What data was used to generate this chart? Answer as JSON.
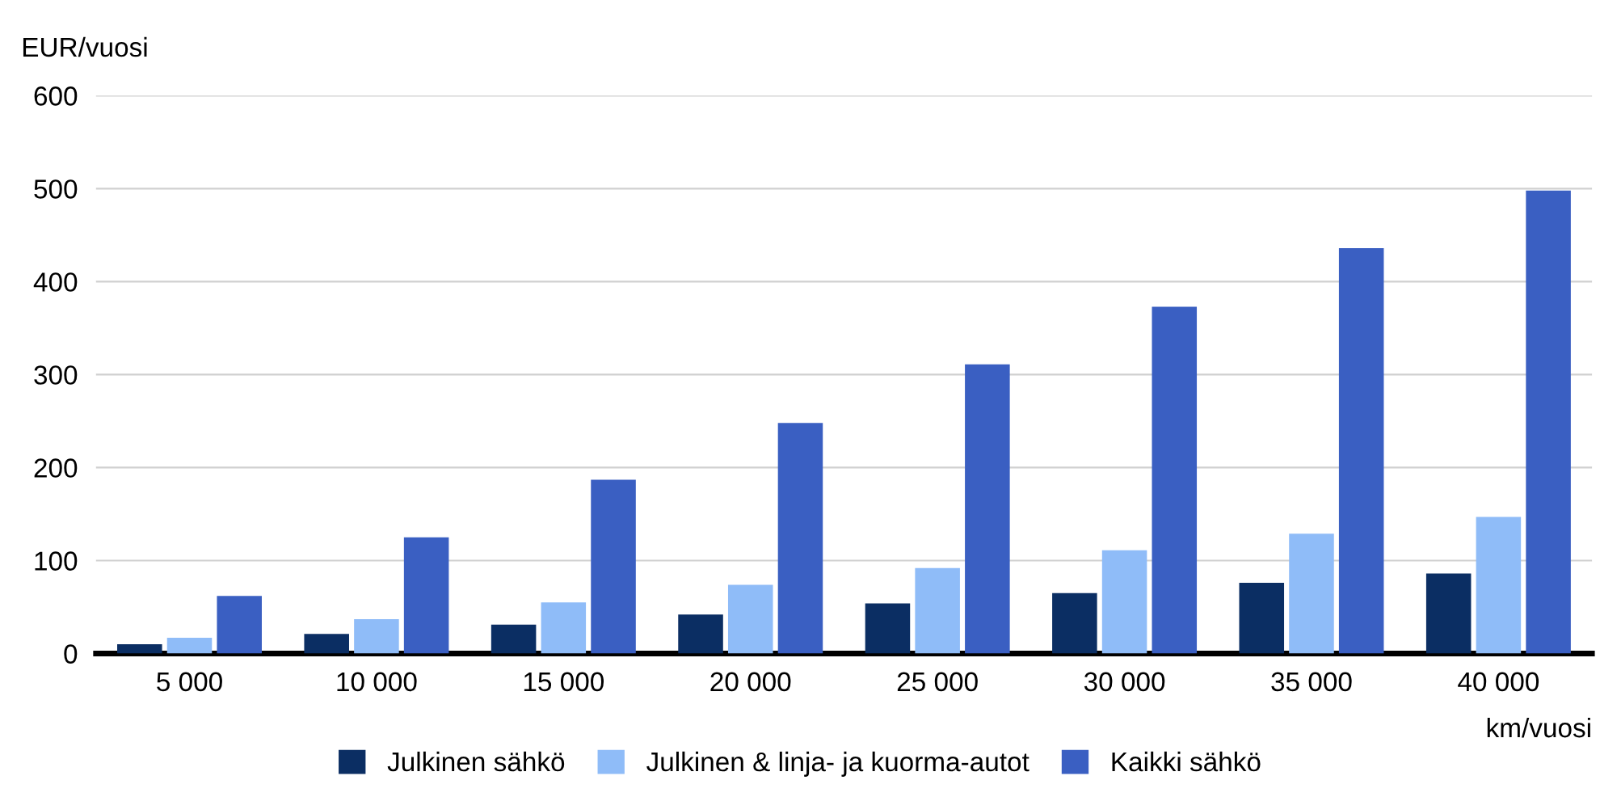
{
  "chart_data": {
    "type": "bar",
    "ylabel": "EUR/vuosi",
    "xlabel": "km/vuosi",
    "categories": [
      "5 000",
      "10 000",
      "15 000",
      "20 000",
      "25 000",
      "30 000",
      "35 000",
      "40 000"
    ],
    "series": [
      {
        "name": "Julkinen sähkö",
        "color": "#0b2e63",
        "values": [
          10,
          21,
          31,
          42,
          54,
          65,
          76,
          86
        ]
      },
      {
        "name": "Julkinen & linja- ja kuorma-autot",
        "color": "#8fbcf8",
        "values": [
          17,
          37,
          55,
          74,
          92,
          111,
          129,
          147
        ]
      },
      {
        "name": "Kaikki sähkö",
        "color": "#3a5fc2",
        "values": [
          62,
          125,
          187,
          248,
          311,
          373,
          436,
          498
        ]
      }
    ],
    "ylim": [
      0,
      600
    ],
    "yticks": [
      0,
      100,
      200,
      300,
      400,
      500,
      600
    ],
    "grid": "y",
    "legend": "bottom"
  }
}
